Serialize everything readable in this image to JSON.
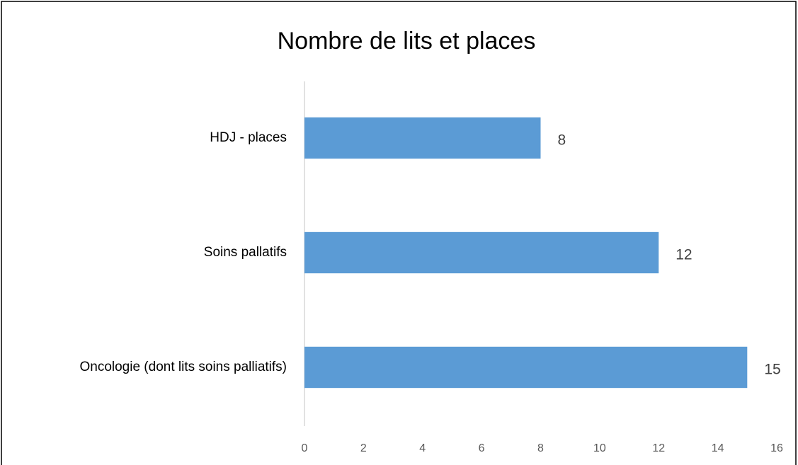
{
  "chart_data": {
    "type": "bar",
    "orientation": "horizontal",
    "title": "Nombre de lits et places",
    "categories": [
      "HDJ - places",
      "Soins pallatifs",
      "Oncologie (dont lits soins palliatifs)"
    ],
    "values": [
      8,
      12,
      15
    ],
    "color": "#5b9bd5",
    "xlim": [
      0,
      16
    ],
    "xticks": [
      0,
      2,
      4,
      6,
      8,
      10,
      12,
      14,
      16
    ],
    "grid": false
  }
}
